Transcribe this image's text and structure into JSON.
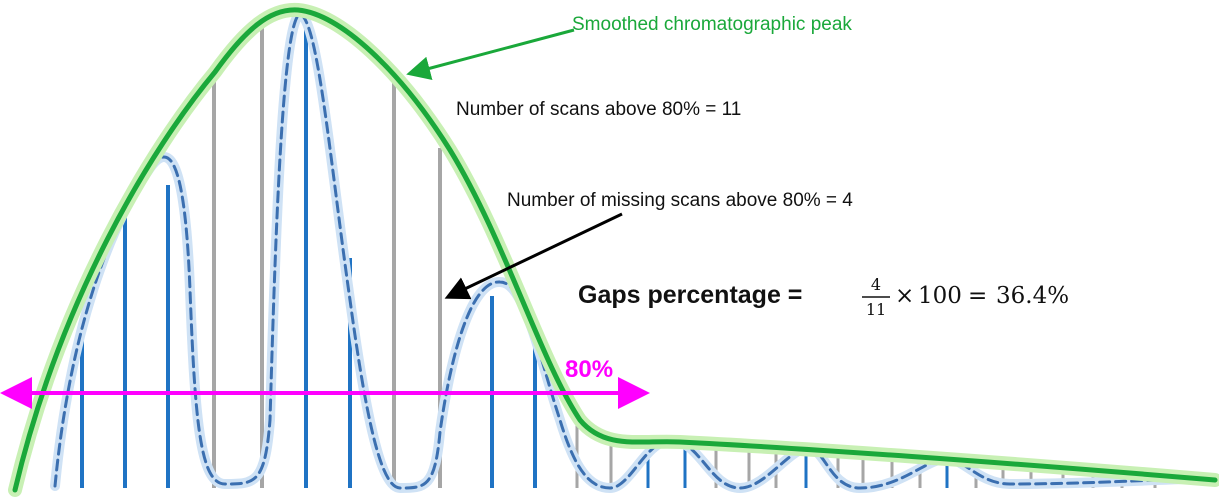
{
  "annotations": {
    "smoothed_peak_label": "Smoothed chromatographic peak",
    "scans_above_label": "Number of scans above 80% = 11",
    "missing_scans_label": "Number of missing scans above 80% = 4",
    "threshold_label": "80%"
  },
  "formula": {
    "lead": "Gaps percentage = ",
    "numerator": "4",
    "denominator": "11",
    "times": "×",
    "hundred": "100",
    "equals": "=",
    "result": "36.4%"
  },
  "colors": {
    "smoothed_peak": "#1aa83a",
    "smoothed_glow": "#c8f0b4",
    "raw_trace": "#3b6fb0",
    "raw_glow": "#cfe2f5",
    "scan_present": "#1f73c4",
    "scan_missing": "#a6a6a6",
    "threshold": "#ff00ff",
    "arrow_black": "#000000",
    "arrow_green": "#1aa83a"
  }
}
